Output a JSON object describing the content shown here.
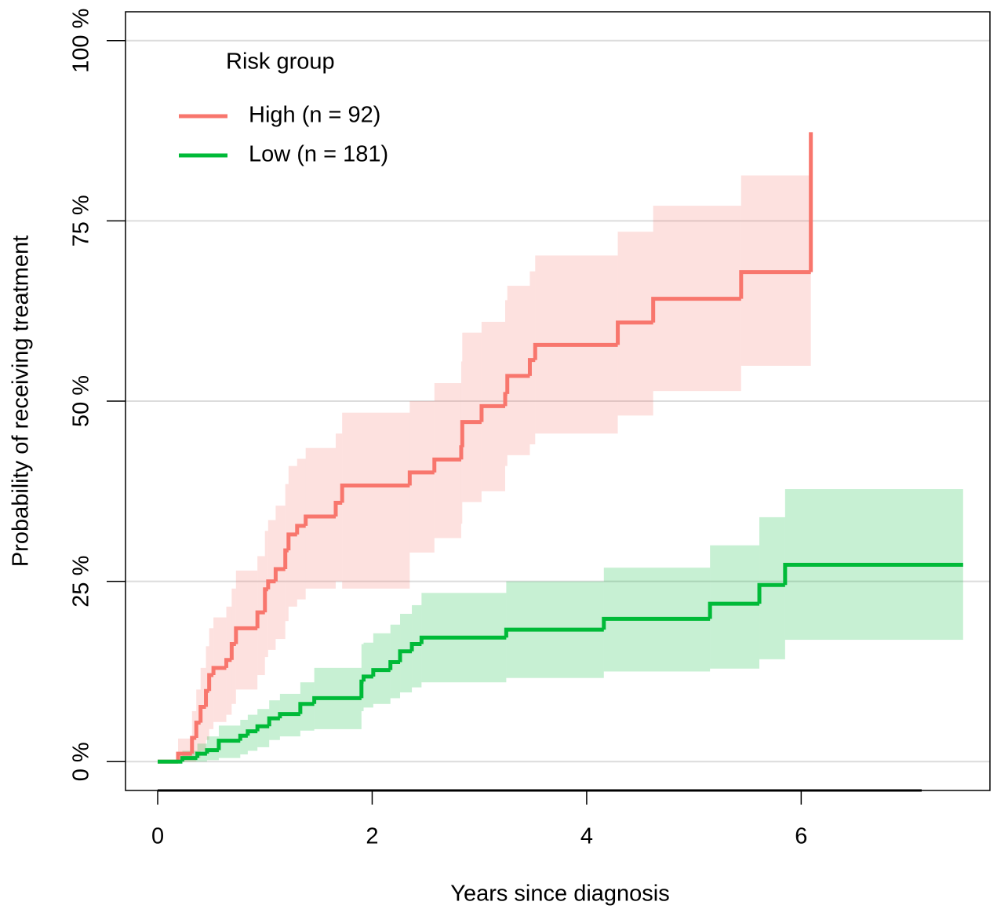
{
  "chart_data": {
    "type": "step",
    "xlabel": "Years since diagnosis",
    "ylabel": "Probability of receiving treatment",
    "legend_title": "Risk group",
    "legend_position": "top-left",
    "grid": true,
    "xlim": [
      -0.3,
      7.76
    ],
    "ylim": [
      -4.0,
      104.0
    ],
    "xticks": [
      0,
      2,
      4,
      6
    ],
    "yticks": [
      {
        "value": 0,
        "label": "0 %"
      },
      {
        "value": 25,
        "label": "25 %"
      },
      {
        "value": 50,
        "label": "50 %"
      },
      {
        "value": 75,
        "label": "75 %"
      },
      {
        "value": 100,
        "label": "100 %"
      }
    ],
    "series": [
      {
        "name": "High (n = 92)",
        "color": "#f8766d",
        "x": [
          0,
          0.19,
          0.32,
          0.36,
          0.4,
          0.45,
          0.48,
          0.52,
          0.64,
          0.69,
          0.73,
          0.93,
          1.0,
          1.03,
          1.1,
          1.19,
          1.22,
          1.3,
          1.38,
          1.66,
          1.72,
          2.35,
          2.58,
          2.83,
          2.84,
          3.02,
          3.24,
          3.26,
          3.47,
          3.52,
          4.29,
          4.62,
          5.44,
          6.09
        ],
        "values": [
          0,
          1.1,
          3.3,
          5.4,
          7.6,
          9.8,
          12.0,
          13.0,
          14.1,
          16.3,
          18.5,
          20.7,
          23.9,
          25.0,
          26.7,
          29.3,
          31.5,
          32.7,
          34.0,
          35.9,
          38.3,
          40.1,
          41.9,
          43.6,
          47.1,
          49.3,
          51.0,
          53.5,
          55.7,
          57.8,
          60.9,
          64.2,
          67.9,
          87.3
        ],
        "lower": [
          0,
          0,
          0,
          0.5,
          1.5,
          3.0,
          4.5,
          5.5,
          6.5,
          8.0,
          10.0,
          12.0,
          14.5,
          15.5,
          17.0,
          19.5,
          21.5,
          22.5,
          24.0,
          25.0,
          24.0,
          29.0,
          31.0,
          33.0,
          36.0,
          37.5,
          41.0,
          42.5,
          44.0,
          45.5,
          48.0,
          51.4,
          54.9,
          null
        ],
        "upper": [
          0,
          3.2,
          7.0,
          10.0,
          13.0,
          16.0,
          18.5,
          20.0,
          21.5,
          24.0,
          26.5,
          28.5,
          32.0,
          33.5,
          35.5,
          38.5,
          41.0,
          42.0,
          43.5,
          45.5,
          48.4,
          50.0,
          52.5,
          55.5,
          59.5,
          61.0,
          64.0,
          66.0,
          68.0,
          70.2,
          73.5,
          77.1,
          81.3,
          null
        ]
      },
      {
        "name": "Low (n = 181)",
        "color": "#00ba38",
        "x": [
          0,
          0.23,
          0.37,
          0.46,
          0.57,
          0.77,
          0.84,
          0.93,
          1.04,
          1.14,
          1.33,
          1.46,
          1.9,
          1.92,
          2.01,
          2.17,
          2.26,
          2.37,
          2.46,
          3.25,
          4.16,
          5.15,
          5.61,
          5.85,
          7.51
        ],
        "values": [
          0,
          0.5,
          1.1,
          1.6,
          2.9,
          3.6,
          4.2,
          4.9,
          6.0,
          6.6,
          8.0,
          8.8,
          11.1,
          11.8,
          12.7,
          13.8,
          15.3,
          16.3,
          17.2,
          18.3,
          19.8,
          21.9,
          24.5,
          27.3,
          27.3
        ],
        "lower": [
          0,
          0,
          0,
          0.2,
          0.5,
          1.0,
          1.5,
          2.0,
          3.0,
          3.5,
          4.3,
          4.5,
          7.0,
          7.5,
          8.0,
          8.8,
          9.6,
          10.3,
          11.0,
          11.6,
          12.5,
          12.9,
          14.2,
          16.9,
          null
        ],
        "upper": [
          0,
          1.5,
          2.5,
          3.5,
          5.0,
          5.8,
          6.5,
          7.3,
          8.5,
          9.4,
          11.0,
          13.0,
          16.3,
          16.5,
          17.8,
          19.0,
          20.5,
          21.7,
          23.4,
          25.0,
          26.9,
          30.0,
          33.9,
          37.8,
          null
        ]
      }
    ]
  }
}
